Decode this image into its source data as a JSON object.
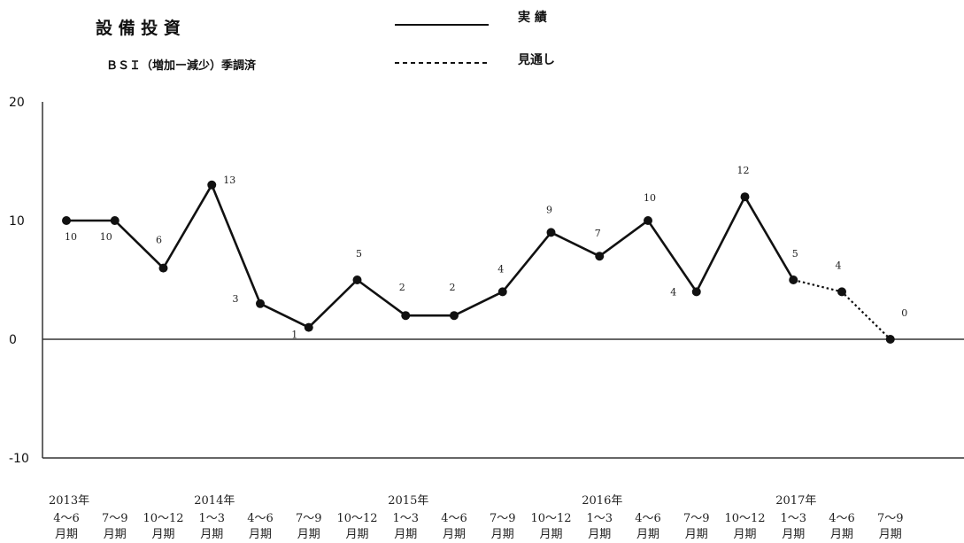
{
  "legend": {
    "title": "設 備 投 資",
    "subtitle": "ＢＳＩ（増加ー減少）季調済",
    "actual_label": "実 績",
    "forecast_label": "見通し"
  },
  "chart_data": {
    "type": "line",
    "ylim": [
      -10,
      20
    ],
    "yticks": [
      "20",
      "10",
      "0",
      "-10"
    ],
    "categories": [
      "4〜6",
      "7〜9",
      "10〜12",
      "1〜3",
      "4〜6",
      "7〜9",
      "10〜12",
      "1〜3",
      "4〜6",
      "7〜9",
      "10〜12",
      "1〜3",
      "4〜6",
      "7〜9",
      "10〜12",
      "1〜3",
      "4〜6",
      "7〜9"
    ],
    "category_suffix": "月期",
    "years": [
      {
        "label": "2013年",
        "index": 0
      },
      {
        "label": "2014年",
        "index": 3
      },
      {
        "label": "2015年",
        "index": 7
      },
      {
        "label": "2016年",
        "index": 11
      },
      {
        "label": "2017年",
        "index": 15
      }
    ],
    "series": [
      {
        "name": "実 績",
        "style": "solid",
        "values": [
          10,
          10,
          6,
          13,
          3,
          1,
          5,
          2,
          2,
          4,
          9,
          7,
          10,
          4,
          12,
          5,
          null,
          null
        ]
      },
      {
        "name": "見通し",
        "style": "dotted",
        "values": [
          null,
          null,
          null,
          null,
          null,
          null,
          null,
          null,
          null,
          null,
          null,
          null,
          null,
          null,
          null,
          5,
          4,
          0
        ]
      }
    ],
    "data_labels": [
      "10",
      "10",
      "6",
      "13",
      "3",
      "1",
      "5",
      "2",
      "2",
      "4",
      "9",
      "7",
      "10",
      "4",
      "12",
      "5",
      "4",
      "0"
    ],
    "grid": false
  }
}
